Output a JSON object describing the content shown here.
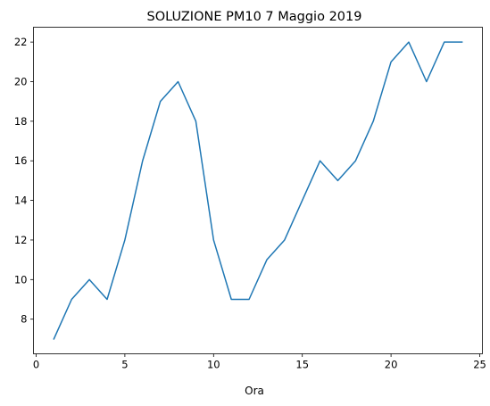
{
  "chart_data": {
    "type": "line",
    "title": "SOLUZIONE PM10 7 Maggio 2019",
    "xlabel": "Ora",
    "ylabel": "",
    "x": [
      1,
      2,
      3,
      4,
      5,
      6,
      7,
      8,
      9,
      10,
      11,
      12,
      13,
      14,
      15,
      16,
      17,
      18,
      19,
      20,
      21,
      22,
      23,
      24
    ],
    "series": [
      {
        "values": [
          7,
          9,
          10,
          9,
          12,
          16,
          19,
          20,
          18,
          12,
          9,
          9,
          11,
          12,
          14,
          16,
          15,
          16,
          18,
          21,
          22,
          20,
          22,
          22
        ],
        "color": "#1f77b4"
      }
    ],
    "xlim": [
      -0.15,
      25.15
    ],
    "ylim": [
      6.25,
      22.75
    ],
    "xticks": [
      0,
      5,
      10,
      15,
      20,
      25
    ],
    "yticks": [
      8,
      10,
      12,
      14,
      16,
      18,
      20,
      22
    ],
    "grid": false
  }
}
